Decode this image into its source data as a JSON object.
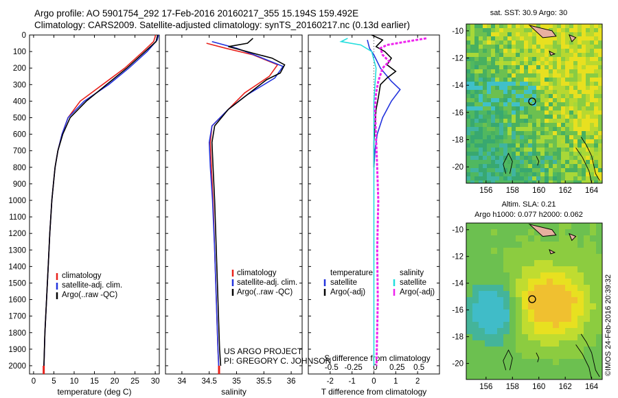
{
  "header": {
    "title_line1": "Argo profile: AO 5901754_292 17-Feb-2016 20160217_355 15.194S 159.492E",
    "title_line2": "Climatology: CARS2009. Satellite-adjusted climatology: synTS_20160217.nc (0.13d earlier)"
  },
  "stamp": "©IMOS 24-Feb-2016 20:39:32",
  "colors": {
    "climatology": "#e8201a",
    "satellite": "#2233dd",
    "argo": "#000000",
    "sat_salinity": "#22dddd",
    "argo_salinity_diff": "#ee22ee"
  },
  "legend_profiles": [
    "climatology",
    "satellite-adj. clim.",
    "Argo(..raw -QC)"
  ],
  "legend_diff": {
    "temperature_head": "temperature",
    "salinity_head": "salinity",
    "t_sat": "satellite",
    "t_argo": "Argo(-adj)",
    "s_sat": "satellite",
    "s_argo": "Argo(-adj)"
  },
  "credit": {
    "line1": "US ARGO PROJECT",
    "line2": "PI: GREGORY C. JOHNSON"
  },
  "map_sst": {
    "title": "sat. SST: 30.9 Argo: 30",
    "yticks": [
      -10,
      -12,
      -14,
      -16,
      -18,
      -20
    ],
    "xticks": [
      156,
      158,
      160,
      162,
      164
    ],
    "argo_lon": 159.492,
    "argo_lat": -15.194
  },
  "map_sla": {
    "title1": "Altim. SLA: 0.21",
    "title2": "Argo h1000: 0.077 h2000: 0.062",
    "yticks": [
      -10,
      -12,
      -14,
      -16,
      -18,
      -20
    ],
    "xticks": [
      156,
      158,
      160,
      162,
      164
    ],
    "argo_lon": 159.492,
    "argo_lat": -15.194
  },
  "chart_data": [
    {
      "type": "line",
      "xlabel": "temperature (deg C)",
      "xlim": [
        -1,
        31
      ],
      "ylim": [
        0,
        2050
      ],
      "xticks": [
        0,
        5,
        10,
        15,
        20,
        25,
        30
      ],
      "yticks": [
        0,
        100,
        200,
        300,
        400,
        500,
        600,
        700,
        800,
        900,
        1000,
        1100,
        1200,
        1300,
        1400,
        1500,
        1600,
        1700,
        1800,
        1900,
        2000
      ],
      "series": [
        {
          "name": "climatology",
          "points": [
            [
              30.1,
              0
            ],
            [
              29.6,
              40
            ],
            [
              27,
              100
            ],
            [
              22.5,
              200
            ],
            [
              17,
              300
            ],
            [
              11.5,
              400
            ],
            [
              8.5,
              500
            ],
            [
              7,
              600
            ],
            [
              6,
              700
            ],
            [
              5.3,
              800
            ],
            [
              4.9,
              900
            ],
            [
              4.5,
              1000
            ],
            [
              4,
              1200
            ],
            [
              3.6,
              1400
            ],
            [
              3.2,
              1600
            ],
            [
              2.8,
              1800
            ],
            [
              2.5,
              2050
            ]
          ]
        },
        {
          "name": "satellite-adj. clim.",
          "points": [
            [
              30.8,
              0
            ],
            [
              30.5,
              30
            ],
            [
              28,
              100
            ],
            [
              23.5,
              200
            ],
            [
              18.5,
              300
            ],
            [
              12.5,
              400
            ],
            [
              8.5,
              500
            ],
            [
              7,
              600
            ],
            [
              6,
              700
            ],
            [
              5.3,
              800
            ],
            [
              4.9,
              900
            ],
            [
              4.5,
              1000
            ],
            [
              4,
              1200
            ],
            [
              3.6,
              1400
            ],
            [
              3.2,
              1600
            ],
            [
              2.8,
              1800
            ],
            [
              2.5,
              2050
            ]
          ]
        },
        {
          "name": "Argo(..raw -QC)",
          "points": [
            [
              30.6,
              0
            ],
            [
              30.2,
              40
            ],
            [
              27.5,
              100
            ],
            [
              23,
              200
            ],
            [
              18,
              300
            ],
            [
              13,
              400
            ],
            [
              9,
              500
            ],
            [
              7.2,
              600
            ],
            [
              6,
              700
            ],
            [
              5.3,
              800
            ],
            [
              4.9,
              900
            ],
            [
              4.5,
              1000
            ],
            [
              4,
              1200
            ],
            [
              3.6,
              1400
            ],
            [
              3.2,
              1600
            ],
            [
              2.8,
              1800
            ],
            [
              2.5,
              2030
            ]
          ]
        }
      ]
    },
    {
      "type": "line",
      "xlabel": "salinity",
      "xlim": [
        33.7,
        36.2
      ],
      "ylim": [
        0,
        2050
      ],
      "xticks": [
        34,
        34.5,
        35,
        35.5,
        36
      ],
      "series": [
        {
          "name": "climatology",
          "points": [
            [
              34.45,
              50
            ],
            [
              34.8,
              80
            ],
            [
              35.3,
              120
            ],
            [
              35.75,
              180
            ],
            [
              35.6,
              250
            ],
            [
              35.15,
              350
            ],
            [
              34.85,
              450
            ],
            [
              34.55,
              550
            ],
            [
              34.52,
              650
            ],
            [
              34.54,
              800
            ],
            [
              34.57,
              1000
            ],
            [
              34.6,
              1300
            ],
            [
              34.63,
              1600
            ],
            [
              34.66,
              1900
            ],
            [
              34.68,
              2050
            ]
          ]
        },
        {
          "name": "satellite-adj. clim.",
          "points": [
            [
              34.55,
              40
            ],
            [
              35.0,
              80
            ],
            [
              35.4,
              130
            ],
            [
              35.85,
              190
            ],
            [
              35.7,
              260
            ],
            [
              35.2,
              360
            ],
            [
              34.85,
              450
            ],
            [
              34.55,
              550
            ],
            [
              34.5,
              650
            ],
            [
              34.52,
              800
            ],
            [
              34.56,
              1000
            ],
            [
              34.6,
              1300
            ],
            [
              34.63,
              1600
            ],
            [
              34.66,
              1900
            ],
            [
              34.68,
              2050
            ]
          ]
        },
        {
          "name": "Argo(..raw -QC)",
          "points": [
            [
              35.3,
              20
            ],
            [
              35.2,
              50
            ],
            [
              34.85,
              70
            ],
            [
              35.3,
              110
            ],
            [
              35.65,
              140
            ],
            [
              35.88,
              180
            ],
            [
              35.8,
              230
            ],
            [
              35.55,
              270
            ],
            [
              35.2,
              360
            ],
            [
              34.85,
              450
            ],
            [
              34.6,
              550
            ],
            [
              34.55,
              650
            ],
            [
              34.57,
              800
            ],
            [
              34.6,
              1000
            ],
            [
              34.63,
              1300
            ],
            [
              34.66,
              1600
            ],
            [
              34.69,
              1900
            ],
            [
              34.71,
              2000
            ]
          ]
        }
      ]
    },
    {
      "type": "line",
      "xlabel": "T difference from climatology",
      "xlabel_top": "S difference from climatology",
      "xlim": [
        -3,
        3
      ],
      "ylim": [
        0,
        2050
      ],
      "xticks": [
        -2,
        -1,
        0,
        1,
        2
      ],
      "xticks_top": [
        "-0.5",
        "-0.25",
        "0",
        "0.25",
        "0.5"
      ],
      "series": [
        {
          "name": "temperature satellite",
          "points": [
            [
              -0.3,
              30
            ],
            [
              -0.2,
              80
            ],
            [
              0,
              120
            ],
            [
              0.3,
              200
            ],
            [
              0.8,
              280
            ],
            [
              1.2,
              330
            ],
            [
              0.8,
              400
            ],
            [
              0.4,
              500
            ],
            [
              0.15,
              600
            ],
            [
              0.05,
              700
            ],
            [
              0,
              800
            ]
          ]
        },
        {
          "name": "temperature Argo(-adj)",
          "points": [
            [
              -0.1,
              0
            ],
            [
              0.4,
              30
            ],
            [
              0.1,
              70
            ],
            [
              0.5,
              100
            ],
            [
              0.8,
              140
            ],
            [
              0.6,
              180
            ],
            [
              1,
              220
            ],
            [
              0.6,
              260
            ],
            [
              0.3,
              300
            ],
            [
              0.2,
              380
            ],
            [
              0.1,
              450
            ],
            [
              0.05,
              550
            ],
            [
              0,
              650
            ],
            [
              0,
              800
            ]
          ]
        },
        {
          "name": "salinity satellite",
          "points": [
            [
              -1.2,
              20
            ],
            [
              -1.5,
              40
            ],
            [
              -0.6,
              60
            ],
            [
              -0.1,
              100
            ],
            [
              0.1,
              200
            ],
            [
              0,
              400
            ],
            [
              0,
              800
            ],
            [
              0,
              1200
            ],
            [
              0,
              2000
            ]
          ]
        },
        {
          "name": "salinity Argo(-adj)",
          "points": [
            [
              2.4,
              20
            ],
            [
              1.5,
              40
            ],
            [
              0.6,
              60
            ],
            [
              0.3,
              80
            ],
            [
              0.4,
              120
            ],
            [
              0.7,
              160
            ],
            [
              0.4,
              200
            ],
            [
              0.2,
              280
            ],
            [
              0.1,
              350
            ],
            [
              0.05,
              450
            ],
            [
              0.15,
              800
            ],
            [
              0.2,
              1000
            ],
            [
              0.15,
              1300
            ],
            [
              0.18,
              1600
            ],
            [
              0.12,
              2000
            ]
          ]
        }
      ]
    }
  ]
}
